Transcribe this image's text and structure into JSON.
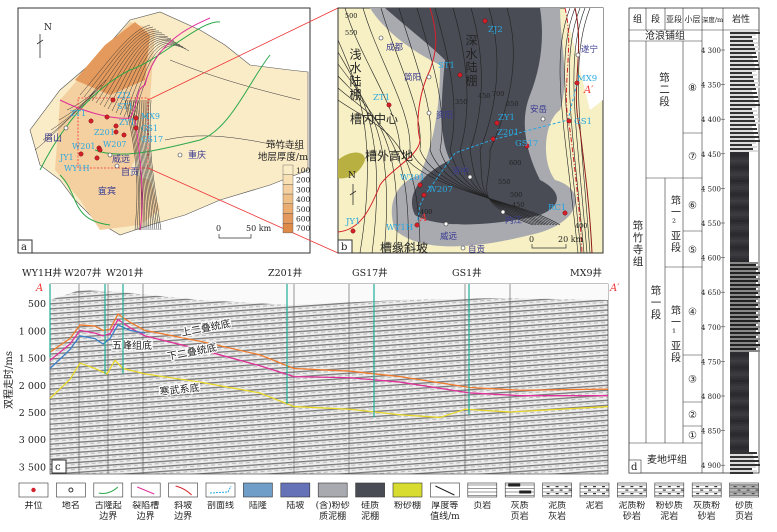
{
  "panel_a": {
    "label": "a",
    "north": "N",
    "legend_title1": "筇竹寺组",
    "legend_title2": "地层厚度/m",
    "thickness_classes": [
      "100",
      "200",
      "300",
      "400",
      "500",
      "600",
      "700"
    ],
    "thickness_colors": [
      "#fbecc8",
      "#f8dfb4",
      "#f4d0a0",
      "#efbf88",
      "#eaac70",
      "#e49a5c",
      "#de8a48"
    ],
    "scale": [
      "0",
      "50 km"
    ],
    "wells": [
      "ZJ2",
      "ST1",
      "ZT1",
      "ZY1",
      "Z201",
      "MX9",
      "GS1",
      "GS17",
      "W201",
      "W207",
      "JY1",
      "WY1H"
    ],
    "places": [
      "眉山",
      "威远",
      "自贡",
      "宜宾",
      "重庆"
    ],
    "contour_labels": [
      "700",
      "600",
      "500",
      "300",
      "200",
      "100",
      "100",
      "200",
      "300",
      "400",
      "500",
      "600"
    ]
  },
  "panel_b": {
    "label": "b",
    "north": "N",
    "scale": [
      "0",
      "20 km"
    ],
    "zones": [
      "浅水陆棚",
      "槽内中心",
      "槽外高地",
      "深水陆棚",
      "槽缘斜坡"
    ],
    "wells": [
      "ZJ2",
      "ST1",
      "ZT1",
      "ZY1",
      "Z201",
      "GS17",
      "GS1",
      "MX9",
      "W201",
      "W207",
      "WY1H",
      "JY1",
      "RC1"
    ],
    "places": [
      "成都",
      "简阳",
      "资阳",
      "安岳",
      "遂宁",
      "资中",
      "内江",
      "威远",
      "自贡"
    ],
    "contour_labels": [
      "500",
      "550",
      "450",
      "700",
      "650",
      "600",
      "550",
      "500",
      "450",
      "400",
      "400",
      "350"
    ],
    "section_ends": [
      "A",
      "A′"
    ]
  },
  "panel_c": {
    "label": "c",
    "ylabel": "双程走时/ms",
    "yticks": [
      "500",
      "1 000",
      "1 500",
      "2 000",
      "2 500",
      "3 000",
      "3 500"
    ],
    "wells": [
      "WY1H井",
      "W207井",
      "W201井",
      "Z201井",
      "GS17井",
      "GS1井",
      "MX9井"
    ],
    "section_ends": [
      "A",
      "A′"
    ],
    "horizons": [
      {
        "name": "上二叠统底",
        "color": "#f07a2a"
      },
      {
        "name": "下二叠统底",
        "color": "#e0309a"
      },
      {
        "name": "五峰组底",
        "color": "#3a7fc8"
      },
      {
        "name": "寒武系底",
        "color": "#e8d82a"
      }
    ]
  },
  "panel_d": {
    "label": "d",
    "headers": [
      "组",
      "段",
      "亚段",
      "小层",
      "深度/m",
      "岩性"
    ],
    "top_formation": "沧浪铺组",
    "formation": "筇竹寺组",
    "bottom_formation": "麦地坪组",
    "members": [
      "筇二段",
      "筇一段"
    ],
    "submembers": [
      "筇一²亚段",
      "筇一¹亚段"
    ],
    "layers": [
      "⑧",
      "⑦",
      "⑥",
      "⑤",
      "④",
      "③",
      "②",
      "①"
    ],
    "depths": [
      "4 300",
      "4 350",
      "4 400",
      "4 450",
      "4 500",
      "4 550",
      "4 600",
      "4 650",
      "4 700",
      "4 750",
      "4 800",
      "4 850",
      "4 900"
    ]
  },
  "legend": [
    "井位",
    "地名",
    "古隆起边界",
    "裂陷槽边界",
    "斜坡边界",
    "剖面线",
    "陆隆",
    "陆坡",
    "(含)粉砂质泥棚",
    "硅质泥棚",
    "粉砂棚",
    "厚度等值线/m",
    "页岩",
    "灰质页岩",
    "泥质灰岩",
    "泥岩",
    "泥质粉砂岩",
    "粉砂质泥岩",
    "灰质粉砂岩",
    "砂质页岩"
  ],
  "colors": {
    "well": "#d4202a",
    "paleo_uplift": "#2aa84a",
    "rift": "#e0309a",
    "slope": "#d4202a",
    "section": "#29a8e0",
    "continental_rise": "#6f9ec8",
    "continental_slope": "#6672b8",
    "silty_shelf": "#a8aab0",
    "siliceous_shelf": "#4a4c55",
    "silt_shelf": "#d8dc30",
    "well_label": "#29a8e0",
    "place_label": "#3a3a90"
  }
}
